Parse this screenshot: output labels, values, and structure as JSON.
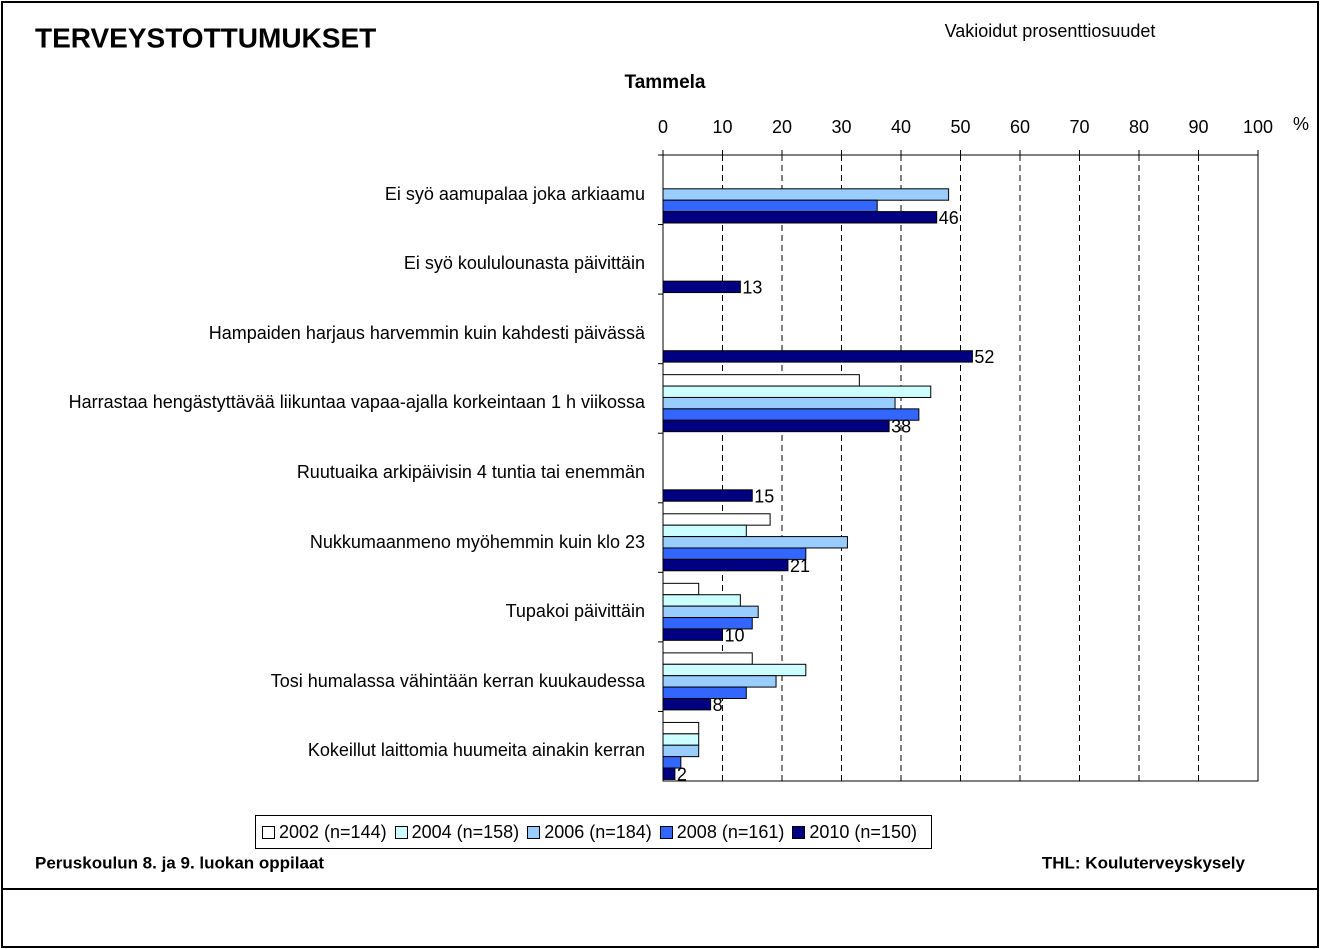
{
  "chart_data": {
    "type": "hbar",
    "title": "TERVEYSTOTTUMUKSET",
    "subtitle": "Vakioidut prosenttiosuudet",
    "chart_title": "Tammela",
    "x_unit": "%",
    "footer_left": "Peruskoulun 8. ja 9. luokan oppilaat",
    "footer_right": "THL: Kouluterveyskysely",
    "categories": [
      "Ei syö aamupalaa joka arkiaamu",
      "Ei syö koululounasta päivittäin",
      "Hampaiden harjaus harvemmin kuin kahdesti päivässä",
      "Harrastaa hengästyttävää liikuntaa vapaa-ajalla korkeintaan 1 h viikossa",
      "Ruutuaika arkipäivisin 4 tuntia tai enemmän",
      "Nukkumaanmeno myöhemmin kuin klo 23",
      "Tupakoi päivittäin",
      "Tosi humalassa vähintään kerran kuukaudessa",
      "Kokeillut laittomia huumeita ainakin kerran"
    ],
    "series": [
      {
        "name": "2002 (n=144)",
        "color": "#ffffff",
        "values": [
          null,
          null,
          null,
          33,
          null,
          18,
          6,
          15,
          6
        ]
      },
      {
        "name": "2004 (n=158)",
        "color": "#ccffff",
        "values": [
          null,
          null,
          null,
          45,
          null,
          14,
          13,
          24,
          6
        ]
      },
      {
        "name": "2006 (n=184)",
        "color": "#99ccff",
        "values": [
          48,
          null,
          null,
          39,
          null,
          31,
          16,
          19,
          6
        ]
      },
      {
        "name": "2008 (n=161)",
        "color": "#3366ff",
        "values": [
          36,
          null,
          null,
          43,
          null,
          24,
          15,
          14,
          3
        ]
      },
      {
        "name": "2010 (n=150)",
        "color": "#000080",
        "values": [
          46,
          13,
          52,
          38,
          15,
          21,
          10,
          8,
          2
        ]
      }
    ],
    "xlim": [
      0,
      100
    ],
    "xticks": [
      0,
      10,
      20,
      30,
      40,
      50,
      60,
      70,
      80,
      90,
      100
    ],
    "grid": true
  }
}
